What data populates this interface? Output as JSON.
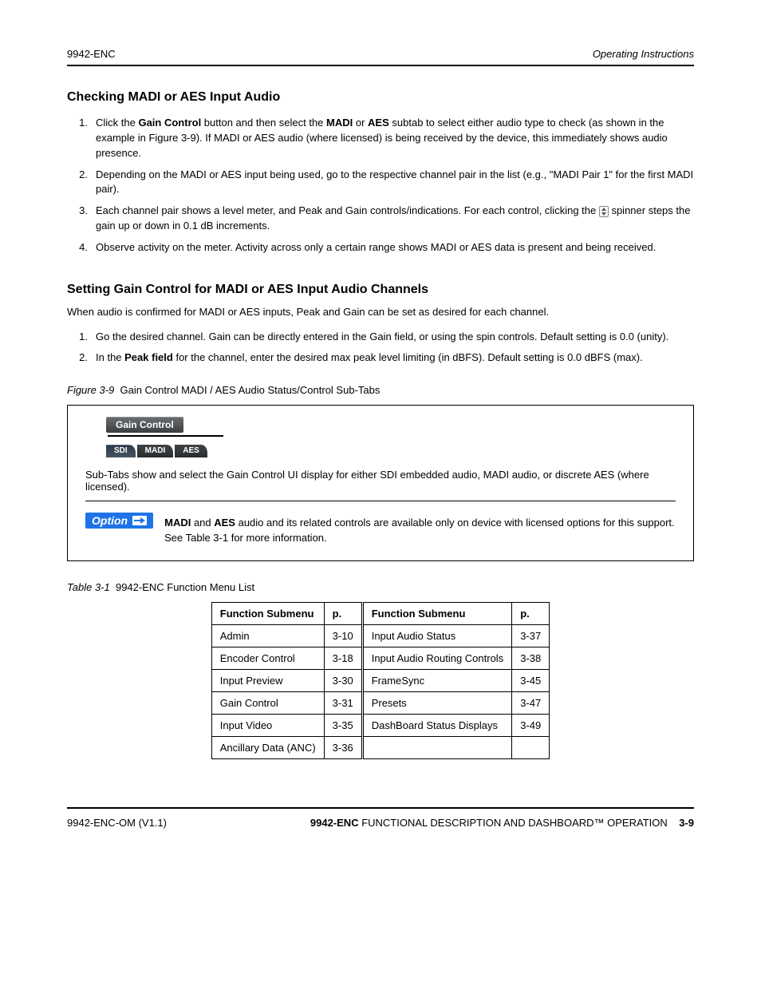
{
  "header": {
    "left_model": "9942-ENC",
    "right_title": "Operating Instructions"
  },
  "section1": {
    "title": "Checking MADI or AES Input Audio",
    "steps": [
      {
        "num": "1.",
        "html": "Click the <b>Gain Control</b> button and then select the <b>MADI</b> or <b>AES</b> subtab to select either audio type to check (as shown in the example in Figure 3-9). If MADI or AES audio (where licensed) is being received by the device, this immediately shows audio presence."
      },
      {
        "num": "2.",
        "html": "Depending on the MADI or AES input being used, go to the respective channel pair in the list (e.g., \"MADI Pair 1\" for the first MADI pair)."
      },
      {
        "num": "3.",
        "html": "Each channel pair shows a level meter, and Peak and Gain controls/indications. For each control, clicking the <span class='updown' data-name='updown-icon' data-interactable='false'></span> spinner steps the gain up or down in 0.1 dB increments."
      },
      {
        "num": "4.",
        "html": "Observe activity on the meter. Activity across only a certain range shows MADI or AES data is present and being received."
      }
    ]
  },
  "section2": {
    "title": "Setting Gain Control for MADI or AES Input Audio Channels",
    "intro": "When audio is confirmed for MADI or AES inputs, Peak and Gain can be set as desired for each channel.",
    "steps": [
      {
        "num": "1.",
        "html": "Go the desired channel. Gain can be directly entered in the Gain field, or using the spin controls. Default setting is 0.0 (unity)."
      },
      {
        "num": "2.",
        "html": "In the <b>Peak field</b> for the channel, enter the desired max peak level limiting (in dBFS). Default setting is 0.0 dBFS (max)."
      }
    ]
  },
  "figure": {
    "title_html": "<span class='tn'>Figure 3-9</span>&nbsp;&nbsp;Gain Control MADI / AES Audio Status/Control Sub-Tabs",
    "gain_label": "Gain Control",
    "tabs": [
      "SDI",
      "MADI",
      "AES"
    ],
    "callout_para": "Sub-Tabs show and select the Gain Control UI display for either SDI embedded audio, MADI audio, or discrete AES (where licensed).",
    "option_text": "<b>MADI</b> and <b>AES</b> audio and its related controls are available only on device with licensed options for this support. See Table 3-1 for more information."
  },
  "table": {
    "caption_html": "<span class='tn'>Table 3-1</span>&nbsp;&nbsp;9942-ENC Function Menu List",
    "cols": [
      "Function Submenu",
      "p.",
      "Function Submenu",
      "p."
    ],
    "rows": [
      [
        "Admin",
        "3-10",
        "Input Audio Status",
        "3-37"
      ],
      [
        "Encoder Control",
        "3-18",
        "Input Audio Routing Controls",
        "3-38"
      ],
      [
        "Input Preview",
        "3-30",
        "FrameSync",
        "3-45"
      ],
      [
        "Gain Control",
        "3-31",
        "Presets",
        "3-47"
      ],
      [
        "Input Video",
        "3-35",
        "DashBoard Status Displays",
        "3-49"
      ],
      [
        "Ancillary Data (ANC)",
        "3-36",
        "",
        ""
      ]
    ]
  },
  "footer": {
    "left": "9942-ENC-OM (V1.1)",
    "right_html": "<b>9942-ENC</b> FUNCTIONAL DESCRIPTION AND DASHBOARD™ OPERATION",
    "page": "3-9"
  }
}
